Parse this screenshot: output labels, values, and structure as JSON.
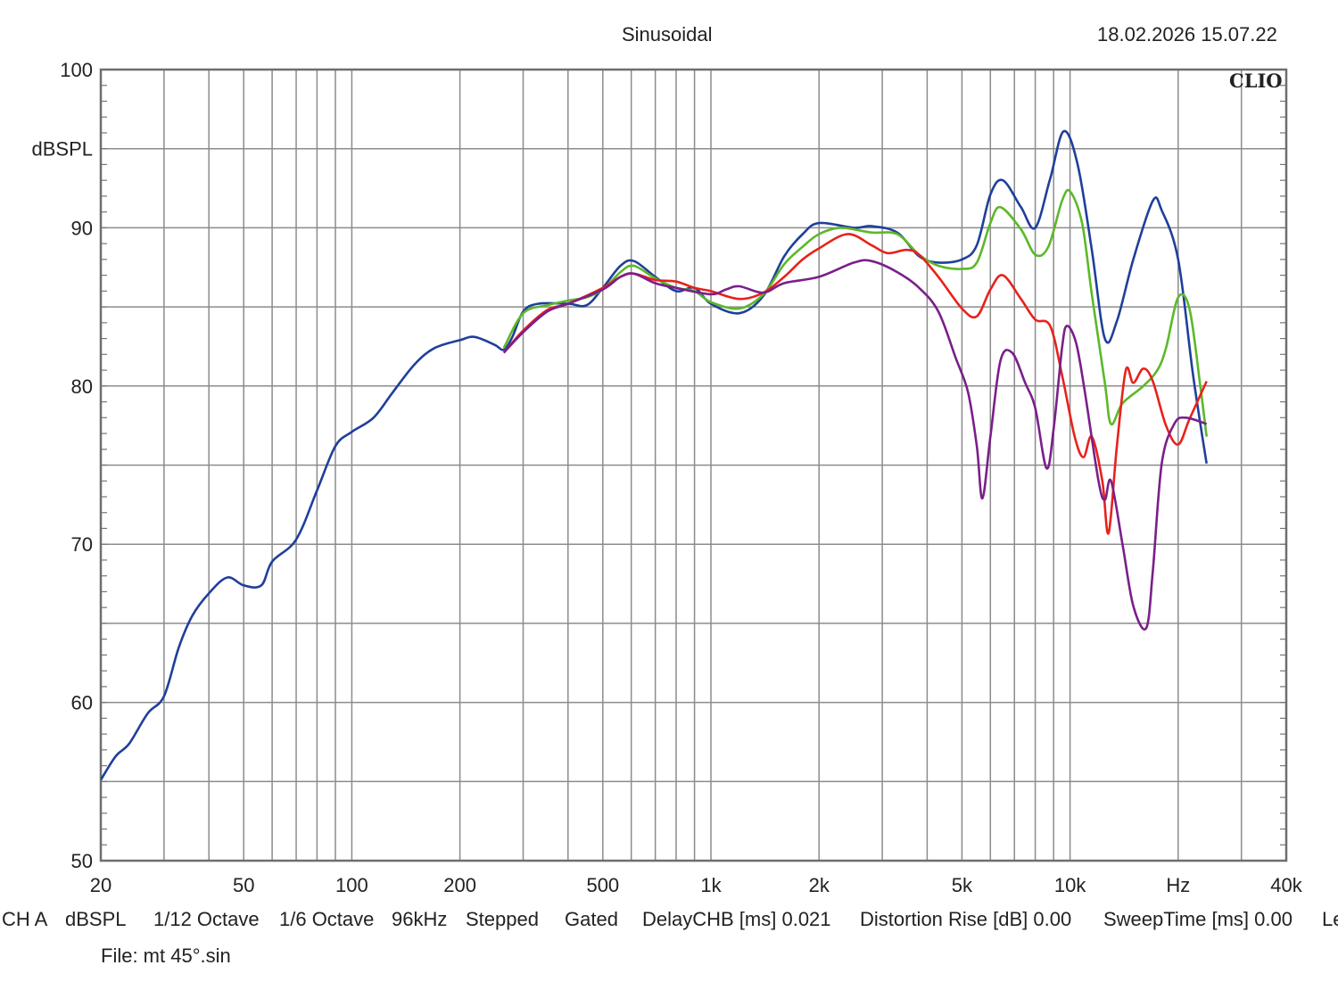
{
  "header": {
    "title": "Sinusoidal",
    "datetime": "18.02.2026 15.07.22",
    "logo": "CLIO"
  },
  "footer": {
    "items": [
      "CH A",
      "dBSPL",
      "1/12 Octave",
      "1/6 Octave",
      "96kHz",
      "Stepped",
      "Gated",
      "DelayCHB [ms] 0.021",
      "Distortion Rise [dB] 0.00",
      "SweepTime [ms] 0.00",
      "Le"
    ],
    "file": "File: mt 45°.sin"
  },
  "chart_data": {
    "type": "line",
    "title": "Sinusoidal",
    "xlabel": "Hz",
    "ylabel": "dBSPL",
    "xscale": "log",
    "xlim": [
      20,
      40000
    ],
    "ylim": [
      50,
      100
    ],
    "grid": true,
    "x_ticks": [
      {
        "v": 20,
        "label": "20"
      },
      {
        "v": 50,
        "label": "50"
      },
      {
        "v": 100,
        "label": "100"
      },
      {
        "v": 200,
        "label": "200"
      },
      {
        "v": 500,
        "label": "500"
      },
      {
        "v": 1000,
        "label": "1k"
      },
      {
        "v": 2000,
        "label": "2k"
      },
      {
        "v": 5000,
        "label": "5k"
      },
      {
        "v": 10000,
        "label": "10k"
      },
      {
        "v": 20000,
        "label": "Hz"
      },
      {
        "v": 40000,
        "label": "40k"
      }
    ],
    "y_ticks": [
      {
        "v": 100,
        "label": "100"
      },
      {
        "v": 95,
        "label": "dBSPL"
      },
      {
        "v": 90,
        "label": "90"
      },
      {
        "v": 80,
        "label": "80"
      },
      {
        "v": 70,
        "label": "70"
      },
      {
        "v": 60,
        "label": "60"
      },
      {
        "v": 50,
        "label": "50"
      }
    ],
    "series": [
      {
        "name": "blue",
        "color": "#1f3f9a",
        "x": [
          20,
          22,
          24,
          27,
          30,
          33,
          36,
          40,
          45,
          50,
          56,
          60,
          70,
          80,
          90,
          100,
          115,
          130,
          150,
          170,
          200,
          220,
          250,
          265,
          280,
          300,
          330,
          400,
          450,
          500,
          560,
          610,
          700,
          800,
          900,
          1000,
          1200,
          1400,
          1600,
          1800,
          2000,
          2500,
          2800,
          3300,
          3800,
          4300,
          5000,
          5500,
          6000,
          6500,
          7300,
          8000,
          8800,
          9600,
          10500,
          11500,
          12500,
          13500,
          15000,
          17000,
          18000,
          20000,
          22000,
          24000
        ],
        "y": [
          55.1,
          56.6,
          57.4,
          59.3,
          60.4,
          63.5,
          65.5,
          66.9,
          67.9,
          67.4,
          67.4,
          68.9,
          70.3,
          73.4,
          76.2,
          77.1,
          78.0,
          79.6,
          81.4,
          82.4,
          82.9,
          83.1,
          82.6,
          82.3,
          83.1,
          84.7,
          85.2,
          85.2,
          85.1,
          86.2,
          87.6,
          87.9,
          86.9,
          86.0,
          86.2,
          85.2,
          84.6,
          85.7,
          88.2,
          89.6,
          90.3,
          90.0,
          90.1,
          89.7,
          88.2,
          87.8,
          88.0,
          88.9,
          92.1,
          93.0,
          91.3,
          90.0,
          93.1,
          96.1,
          94.0,
          88.6,
          83.0,
          84.1,
          88.0,
          91.7,
          91.1,
          88.0,
          80.7,
          75.1
        ]
      },
      {
        "name": "green",
        "color": "#5cb82a",
        "x": [
          265,
          300,
          350,
          400,
          450,
          500,
          560,
          610,
          700,
          800,
          900,
          1000,
          1200,
          1400,
          1600,
          1800,
          2000,
          2300,
          2800,
          3300,
          3800,
          4300,
          5000,
          5500,
          6000,
          6400,
          7300,
          8000,
          8700,
          9500,
          10000,
          10800,
          11500,
          12500,
          13000,
          14000,
          16000,
          17500,
          18500,
          20000,
          21500,
          23000,
          24000
        ],
        "y": [
          82.4,
          84.6,
          85.1,
          85.4,
          85.6,
          86.1,
          87.2,
          87.6,
          86.8,
          86.2,
          86.0,
          85.3,
          84.9,
          85.8,
          87.7,
          88.8,
          89.6,
          90.0,
          89.7,
          89.6,
          88.3,
          87.6,
          87.4,
          87.8,
          90.3,
          91.3,
          89.9,
          88.3,
          88.8,
          91.7,
          92.3,
          90.3,
          85.8,
          80.2,
          77.6,
          78.9,
          80.0,
          81.0,
          82.4,
          85.6,
          84.9,
          80.2,
          76.8
        ]
      },
      {
        "name": "red",
        "color": "#e8211b",
        "x": [
          265,
          300,
          350,
          400,
          500,
          560,
          610,
          700,
          800,
          900,
          1000,
          1200,
          1400,
          1600,
          1800,
          2000,
          2400,
          2800,
          3100,
          3500,
          3800,
          4300,
          5000,
          5500,
          6000,
          6500,
          7300,
          8000,
          8800,
          9500,
          10300,
          10900,
          11500,
          12300,
          12800,
          13500,
          14300,
          15000,
          16000,
          17000,
          18500,
          20000,
          21500,
          24000
        ],
        "y": [
          82.1,
          83.5,
          84.8,
          85.2,
          86.2,
          86.9,
          87.1,
          86.7,
          86.6,
          86.2,
          86.0,
          85.5,
          85.9,
          86.9,
          88.0,
          88.7,
          89.6,
          88.9,
          88.4,
          88.6,
          88.3,
          86.9,
          84.9,
          84.4,
          86.1,
          87.0,
          85.5,
          84.2,
          83.8,
          80.7,
          76.8,
          75.5,
          76.8,
          74.0,
          70.7,
          76.2,
          81.0,
          80.2,
          81.1,
          80.3,
          77.5,
          76.3,
          77.9,
          80.3
        ]
      },
      {
        "name": "purple",
        "color": "#7a1f8a",
        "x": [
          265,
          300,
          350,
          400,
          500,
          560,
          610,
          700,
          800,
          1000,
          1100,
          1200,
          1400,
          1600,
          2000,
          2500,
          2800,
          3300,
          3800,
          4300,
          4800,
          5200,
          5500,
          5700,
          6000,
          6400,
          6900,
          7500,
          8000,
          8600,
          9000,
          9500,
          9800,
          10400,
          11000,
          12000,
          12500,
          13000,
          14000,
          15000,
          16300,
          17000,
          18000,
          19500,
          21000,
          24000
        ],
        "y": [
          82.1,
          83.4,
          84.7,
          85.2,
          86.1,
          86.9,
          87.1,
          86.5,
          86.2,
          85.8,
          86.1,
          86.3,
          85.9,
          86.5,
          86.9,
          87.8,
          87.9,
          87.2,
          86.2,
          84.7,
          81.8,
          79.6,
          76.2,
          72.9,
          76.8,
          81.6,
          82.1,
          80.2,
          78.6,
          74.8,
          77.3,
          82.4,
          83.8,
          82.7,
          79.6,
          74.0,
          72.8,
          74.0,
          70.0,
          66.1,
          64.7,
          68.3,
          75.1,
          77.6,
          78.0,
          77.6
        ]
      }
    ]
  }
}
